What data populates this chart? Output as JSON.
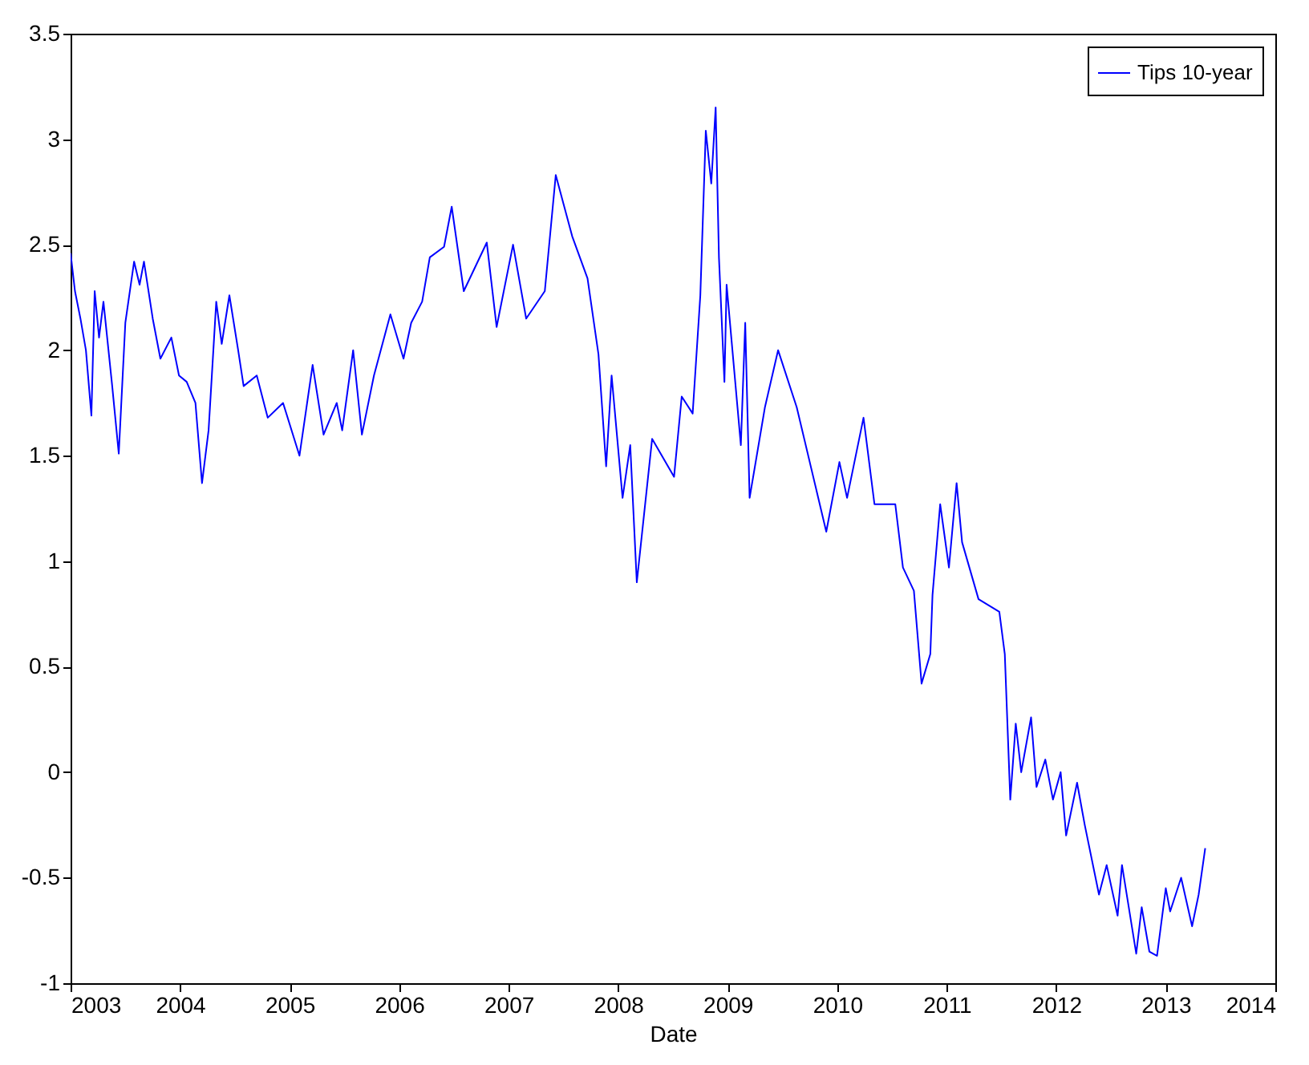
{
  "chart_data": {
    "type": "line",
    "xlabel": "Date",
    "x": [
      2003.0,
      2003.04,
      2003.09,
      2003.14,
      2003.19,
      2003.22,
      2003.26,
      2003.3,
      2003.38,
      2003.44,
      2003.5,
      2003.58,
      2003.63,
      2003.67,
      2003.75,
      2003.82,
      2003.92,
      2003.99,
      2004.06,
      2004.14,
      2004.2,
      2004.26,
      2004.33,
      2004.38,
      2004.45,
      2004.53,
      2004.58,
      2004.7,
      2004.8,
      2004.94,
      2005.09,
      2005.21,
      2005.31,
      2005.43,
      2005.48,
      2005.58,
      2005.66,
      2005.77,
      2005.92,
      2006.04,
      2006.11,
      2006.21,
      2006.28,
      2006.41,
      2006.48,
      2006.59,
      2006.8,
      2006.89,
      2007.04,
      2007.16,
      2007.33,
      2007.43,
      2007.58,
      2007.72,
      2007.82,
      2007.89,
      2007.94,
      2008.04,
      2008.11,
      2008.17,
      2008.31,
      2008.51,
      2008.58,
      2008.68,
      2008.75,
      2008.8,
      2008.85,
      2008.89,
      2008.92,
      2008.97,
      2008.99,
      2009.12,
      2009.16,
      2009.2,
      2009.34,
      2009.46,
      2009.63,
      2009.9,
      2010.02,
      2010.09,
      2010.24,
      2010.34,
      2010.53,
      2010.6,
      2010.7,
      2010.77,
      2010.85,
      2010.87,
      2010.94,
      2011.02,
      2011.09,
      2011.14,
      2011.29,
      2011.48,
      2011.53,
      2011.58,
      2011.63,
      2011.68,
      2011.77,
      2011.82,
      2011.9,
      2011.97,
      2012.04,
      2012.09,
      2012.19,
      2012.26,
      2012.39,
      2012.46,
      2012.56,
      2012.6,
      2012.73,
      2012.78,
      2012.85,
      2012.92,
      2013.0,
      2013.04,
      2013.14,
      2013.24,
      2013.3,
      2013.36
    ],
    "series": [
      {
        "name": "Tips 10-year",
        "color": "#0000ff",
        "values": [
          2.46,
          2.28,
          2.15,
          2.0,
          1.69,
          2.28,
          2.06,
          2.23,
          1.83,
          1.51,
          2.13,
          2.42,
          2.31,
          2.42,
          2.15,
          1.96,
          2.06,
          1.88,
          1.85,
          1.75,
          1.37,
          1.62,
          2.23,
          2.03,
          2.26,
          2.0,
          1.83,
          1.88,
          1.68,
          1.75,
          1.5,
          1.93,
          1.6,
          1.75,
          1.62,
          2.0,
          1.6,
          1.88,
          2.17,
          1.96,
          2.13,
          2.23,
          2.44,
          2.49,
          2.68,
          2.28,
          2.51,
          2.11,
          2.5,
          2.15,
          2.28,
          2.83,
          2.54,
          2.34,
          1.98,
          1.45,
          1.88,
          1.3,
          1.55,
          0.9,
          1.58,
          1.4,
          1.78,
          1.7,
          2.26,
          3.04,
          2.79,
          3.15,
          2.44,
          1.85,
          2.31,
          1.55,
          2.13,
          1.3,
          1.73,
          2.0,
          1.73,
          1.14,
          1.47,
          1.3,
          1.68,
          1.27,
          1.27,
          0.97,
          0.86,
          0.42,
          0.56,
          0.84,
          1.27,
          0.97,
          1.37,
          1.09,
          0.82,
          0.76,
          0.56,
          -0.13,
          0.23,
          0.0,
          0.26,
          -0.07,
          0.06,
          -0.13,
          0.0,
          -0.3,
          -0.05,
          -0.25,
          -0.58,
          -0.44,
          -0.68,
          -0.44,
          -0.86,
          -0.64,
          -0.85,
          -0.87,
          -0.55,
          -0.66,
          -0.5,
          -0.73,
          -0.58,
          -0.36
        ]
      }
    ],
    "xlim": [
      2003,
      2014
    ],
    "xticks": [
      2003,
      2004,
      2005,
      2006,
      2007,
      2008,
      2009,
      2010,
      2011,
      2012,
      2013,
      2014
    ],
    "ylim": [
      -1,
      3.5
    ],
    "yticks": [
      -1,
      -0.5,
      0,
      0.5,
      1,
      1.5,
      2,
      2.5,
      3,
      3.5
    ],
    "grid": false,
    "legend": "top right",
    "line_style": "solid"
  }
}
